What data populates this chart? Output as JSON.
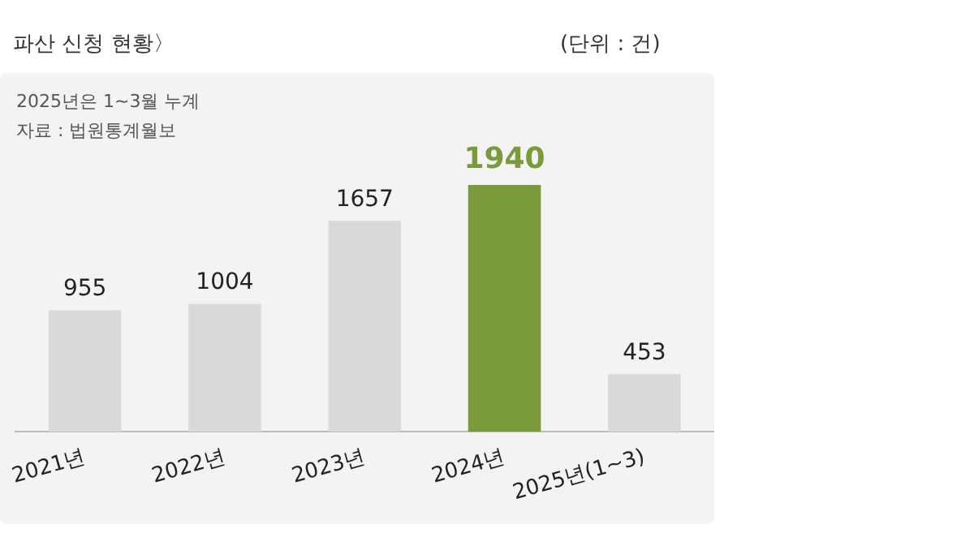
{
  "chart_data": {
    "type": "bar",
    "title": "파산 신청 현황〉",
    "subtitle": "(단위 : 건)",
    "annotations": [
      "2025년은 1~3월 누계",
      "자료 : 법원통계월보"
    ],
    "categories": [
      "2021년",
      "2022년",
      "2023년",
      "2024년",
      "2025년(1~3)"
    ],
    "values": [
      955,
      1004,
      1657,
      1940,
      453
    ],
    "colors": [
      "#d9d9d9",
      "#d9d9d9",
      "#d9d9d9",
      "#7b9a3c",
      "#d9d9d9"
    ],
    "data_labels": true,
    "grid": false,
    "legend": false
  }
}
